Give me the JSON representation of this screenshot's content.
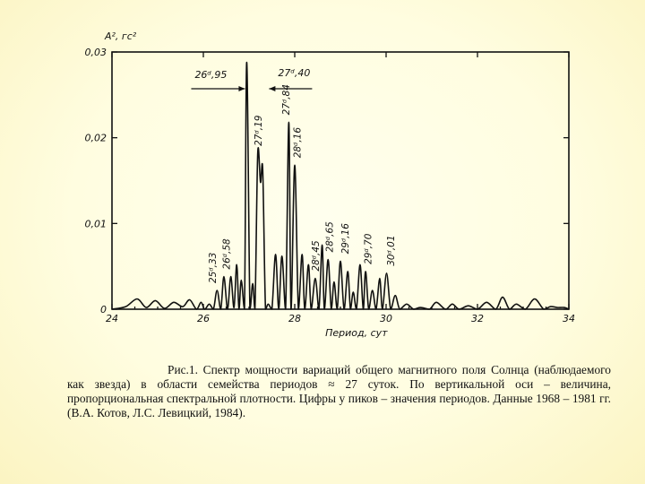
{
  "chart_data": {
    "type": "line",
    "ylabel": "A², гс²",
    "xlabel": "Период, сут",
    "xlim": [
      24,
      34
    ],
    "ylim": [
      0,
      0.03
    ],
    "x_ticks": [
      "24",
      "26",
      "28",
      "30",
      "32",
      "34"
    ],
    "y_ticks": [
      "0",
      "0,01",
      "0,02",
      "0,03"
    ],
    "series": [
      {
        "x": [
          24.0,
          24.3,
          24.55,
          24.75,
          24.95,
          25.15,
          25.35,
          25.55,
          25.7,
          25.85,
          25.95,
          26.03,
          26.13,
          26.22,
          26.3,
          26.38,
          26.45,
          26.53,
          26.6,
          26.67,
          26.73,
          26.78,
          26.83,
          26.9,
          26.95,
          27.02,
          27.08,
          27.13,
          27.19,
          27.25,
          27.3,
          27.36,
          27.42,
          27.5,
          27.58,
          27.65,
          27.72,
          27.8,
          27.87,
          27.92,
          28.0,
          28.08,
          28.16,
          28.22,
          28.3,
          28.36,
          28.45,
          28.53,
          28.6,
          28.65,
          28.73,
          28.8,
          28.86,
          28.93,
          29.0,
          29.08,
          29.16,
          29.22,
          29.28,
          29.35,
          29.43,
          29.5,
          29.55,
          29.62,
          29.7,
          29.78,
          29.86,
          29.92,
          30.01,
          30.1,
          30.2,
          30.3,
          30.45,
          30.6,
          30.75,
          30.95,
          31.1,
          31.3,
          31.45,
          31.6,
          31.8,
          32.0,
          32.2,
          32.4,
          32.55,
          32.7,
          32.85,
          33.05,
          33.25,
          33.45,
          33.6,
          33.75,
          33.9,
          34.0
        ],
        "y": [
          0.0,
          0.0003,
          0.0012,
          0.0002,
          0.001,
          0.0001,
          0.0008,
          0.0003,
          0.0011,
          0.0,
          0.0008,
          0.0,
          0.0006,
          0.0,
          0.0022,
          0.0,
          0.0038,
          0.0,
          0.0038,
          0.0002,
          0.0052,
          0.0,
          0.0034,
          0.0,
          0.0288,
          0.0,
          0.003,
          0.0,
          0.0182,
          0.0148,
          0.0162,
          0.0,
          0.0006,
          0.0,
          0.0064,
          0.0,
          0.0062,
          0.0,
          0.0218,
          0.0,
          0.0168,
          0.0,
          0.0064,
          0.0,
          0.0052,
          0.0,
          0.0036,
          0.0,
          0.0075,
          0.0,
          0.0058,
          0.0,
          0.0032,
          0.0,
          0.0056,
          0.0,
          0.0044,
          0.0,
          0.002,
          0.0,
          0.0052,
          0.0,
          0.0044,
          0.0,
          0.0022,
          0.0,
          0.0036,
          0.0,
          0.0042,
          0.0,
          0.0016,
          0.0,
          0.0006,
          0.0,
          0.0002,
          0.0,
          0.0008,
          0.0,
          0.0006,
          0.0,
          0.0004,
          0.0,
          0.0008,
          0.0,
          0.0014,
          0.0,
          0.0006,
          0.0,
          0.0012,
          0.0,
          0.0003,
          0.0002,
          0.0002,
          0.0
        ]
      }
    ],
    "peak_labels": [
      {
        "text": "25ᵈ,33",
        "x": 26.2
      },
      {
        "text": "26ᵈ,58",
        "x": 26.5
      },
      {
        "text": "27ᵈ,19",
        "x": 27.2
      },
      {
        "text": "27ᵈ,84",
        "x": 27.8
      },
      {
        "text": "28ᵈ,16",
        "x": 28.05
      },
      {
        "text": "28ᵈ,45",
        "x": 28.45
      },
      {
        "text": "28ᵈ,65",
        "x": 28.75
      },
      {
        "text": "29ᵈ,16",
        "x": 29.1
      },
      {
        "text": "29ᵈ,70",
        "x": 29.6
      },
      {
        "text": "30ᵈ,01",
        "x": 30.1
      }
    ],
    "arrow_labels": [
      {
        "text": "26ᵈ,95",
        "x": 26.95,
        "direction": "left"
      },
      {
        "text": "27ᵈ,40",
        "x": 27.4,
        "direction": "right"
      }
    ]
  },
  "caption": "Рис.1. Спектр мощности вариаций общего магнитного поля Солнца (наблюдаемого как звезда) в области семейства периодов ≈ 27 суток. По вертикальной оси – величина, пропорциональная спектральной плотности. Цифры у пиков – значения периодов. Данные 1968 – 1981 гг. (В.А. Котов, Л.С. Левицкий, 1984)."
}
